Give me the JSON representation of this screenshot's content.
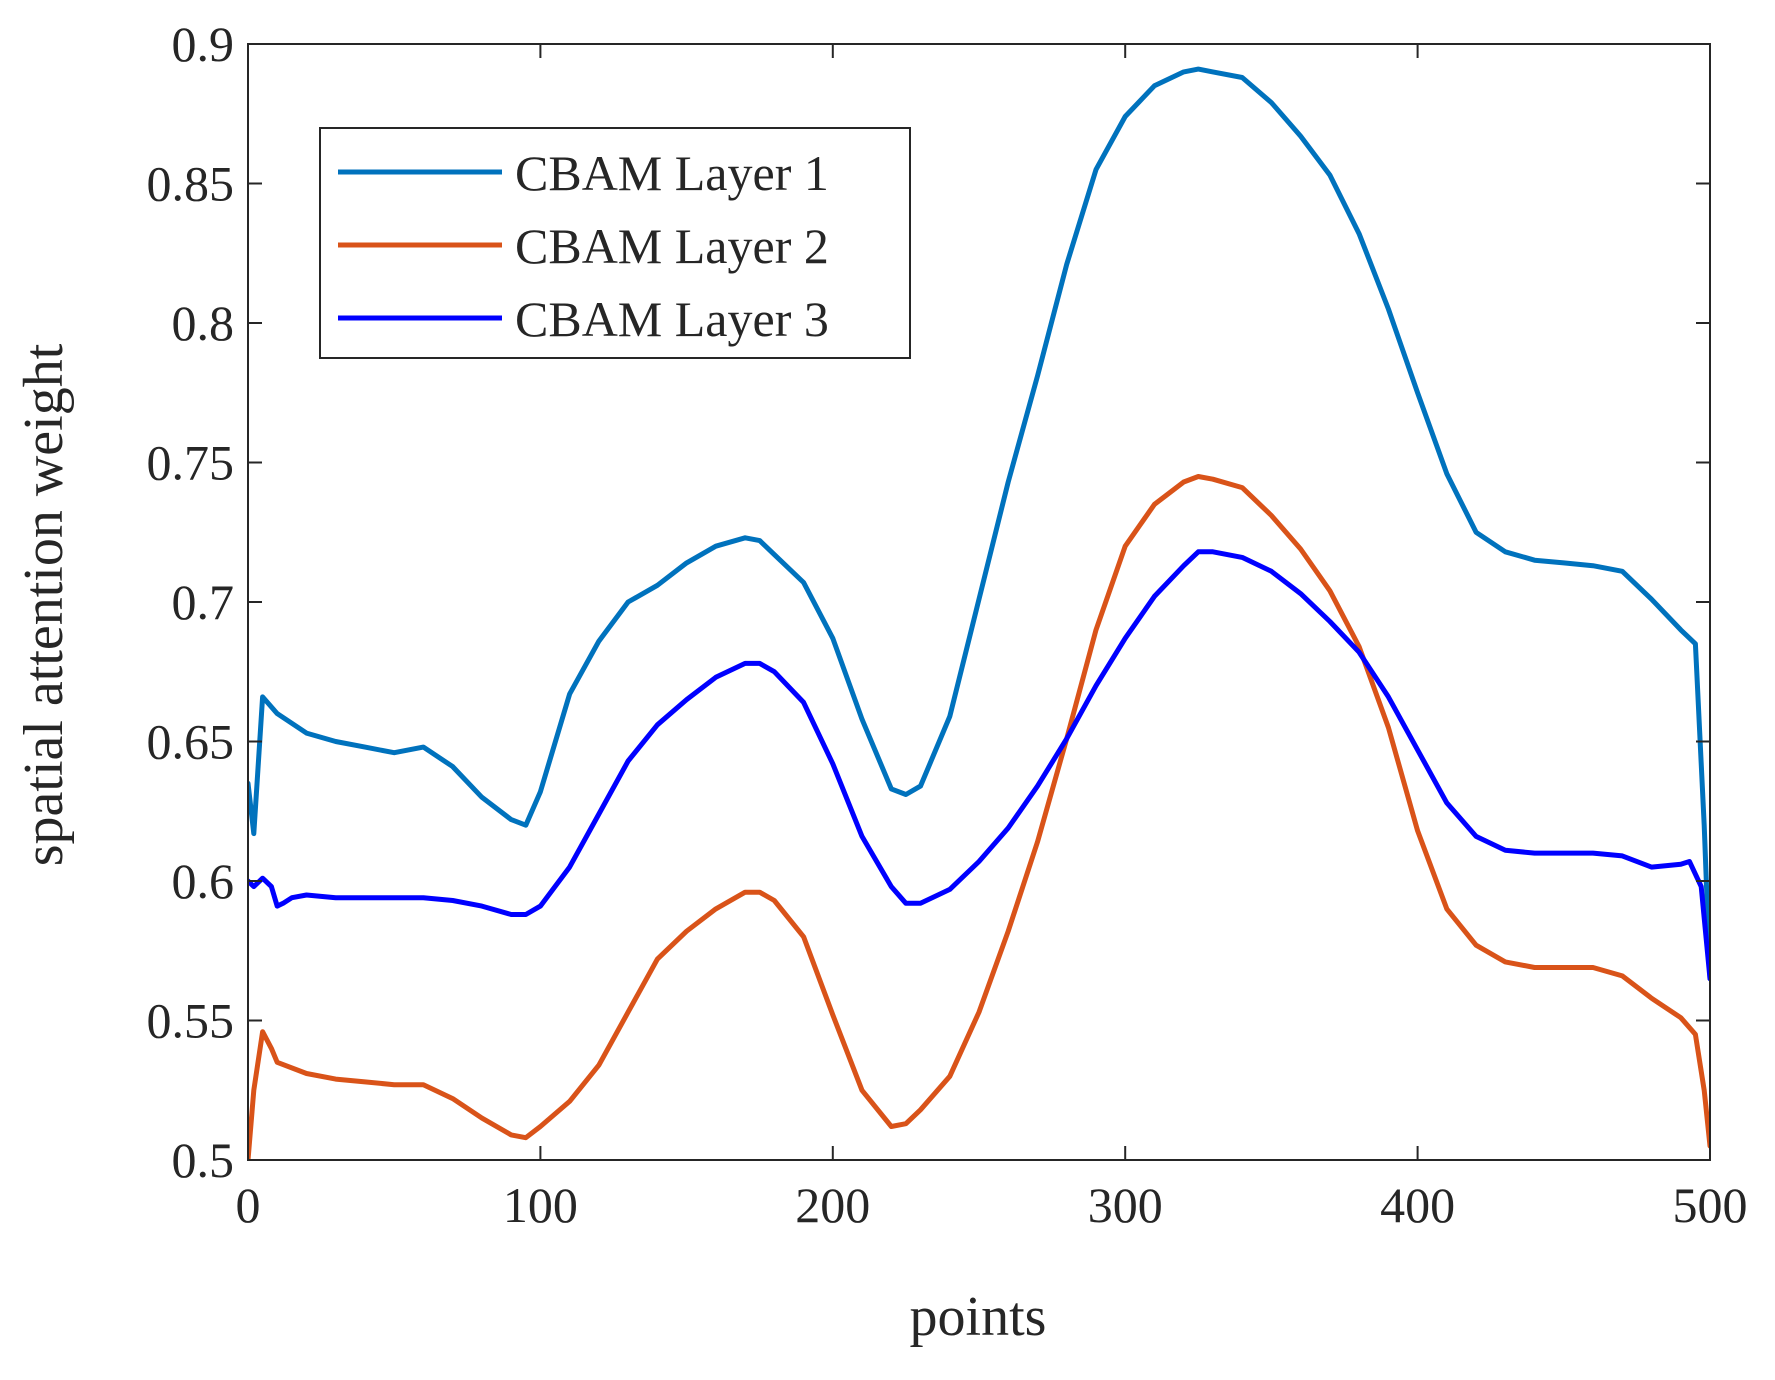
{
  "chart_data": {
    "type": "line",
    "title": "",
    "xlabel": "points",
    "ylabel": "spatial attention weight",
    "xlim": [
      0,
      500
    ],
    "ylim": [
      0.5,
      0.9
    ],
    "xticks": [
      0,
      100,
      200,
      300,
      400,
      500
    ],
    "yticks": [
      0.5,
      0.55,
      0.6,
      0.65,
      0.7,
      0.75,
      0.8,
      0.85,
      0.9
    ],
    "xtick_labels": [
      "0",
      "100",
      "200",
      "300",
      "400",
      "500"
    ],
    "ytick_labels": [
      "0.5",
      "0.55",
      "0.6",
      "0.65",
      "0.7",
      "0.75",
      "0.8",
      "0.85",
      "0.9"
    ],
    "grid": false,
    "legend_position": "top-left",
    "series": [
      {
        "name": "CBAM Layer 1",
        "color": "#0072BD",
        "x": [
          0,
          2,
          5,
          10,
          20,
          30,
          40,
          50,
          60,
          70,
          80,
          90,
          95,
          100,
          110,
          120,
          130,
          140,
          150,
          160,
          170,
          175,
          180,
          190,
          200,
          210,
          220,
          225,
          230,
          240,
          250,
          260,
          270,
          280,
          290,
          300,
          310,
          320,
          325,
          330,
          340,
          350,
          360,
          370,
          380,
          390,
          400,
          410,
          420,
          430,
          440,
          450,
          460,
          470,
          480,
          490,
          495,
          498,
          500
        ],
        "y": [
          0.635,
          0.617,
          0.666,
          0.66,
          0.653,
          0.65,
          0.648,
          0.646,
          0.648,
          0.641,
          0.63,
          0.622,
          0.62,
          0.632,
          0.667,
          0.686,
          0.7,
          0.706,
          0.714,
          0.72,
          0.723,
          0.722,
          0.717,
          0.707,
          0.687,
          0.658,
          0.633,
          0.631,
          0.634,
          0.659,
          0.701,
          0.743,
          0.781,
          0.821,
          0.855,
          0.874,
          0.885,
          0.89,
          0.891,
          0.89,
          0.888,
          0.879,
          0.867,
          0.853,
          0.832,
          0.805,
          0.775,
          0.746,
          0.725,
          0.718,
          0.715,
          0.714,
          0.713,
          0.711,
          0.701,
          0.69,
          0.685,
          0.62,
          0.565
        ]
      },
      {
        "name": "CBAM Layer 2",
        "color": "#D95319",
        "x": [
          0,
          2,
          5,
          8,
          10,
          20,
          30,
          40,
          50,
          60,
          70,
          80,
          90,
          95,
          100,
          110,
          120,
          130,
          140,
          150,
          160,
          170,
          175,
          180,
          190,
          200,
          210,
          220,
          225,
          230,
          240,
          250,
          260,
          270,
          280,
          290,
          300,
          310,
          320,
          325,
          330,
          340,
          350,
          360,
          370,
          380,
          390,
          400,
          410,
          420,
          430,
          440,
          450,
          460,
          470,
          480,
          490,
          495,
          498,
          500
        ],
        "y": [
          0.5,
          0.525,
          0.546,
          0.54,
          0.535,
          0.531,
          0.529,
          0.528,
          0.527,
          0.527,
          0.522,
          0.515,
          0.509,
          0.508,
          0.512,
          0.521,
          0.534,
          0.553,
          0.572,
          0.582,
          0.59,
          0.596,
          0.596,
          0.593,
          0.58,
          0.552,
          0.525,
          0.512,
          0.513,
          0.518,
          0.53,
          0.553,
          0.582,
          0.614,
          0.651,
          0.69,
          0.72,
          0.735,
          0.743,
          0.745,
          0.744,
          0.741,
          0.731,
          0.719,
          0.704,
          0.684,
          0.655,
          0.618,
          0.59,
          0.577,
          0.571,
          0.569,
          0.569,
          0.569,
          0.566,
          0.558,
          0.551,
          0.545,
          0.525,
          0.505
        ]
      },
      {
        "name": "CBAM Layer 3",
        "color": "#0000FF",
        "x": [
          0,
          2,
          5,
          8,
          10,
          12,
          15,
          20,
          30,
          40,
          50,
          60,
          70,
          80,
          90,
          95,
          100,
          110,
          120,
          130,
          140,
          150,
          160,
          170,
          175,
          180,
          190,
          200,
          210,
          220,
          225,
          230,
          240,
          250,
          260,
          270,
          280,
          290,
          300,
          310,
          320,
          325,
          330,
          340,
          350,
          360,
          370,
          380,
          390,
          400,
          410,
          420,
          430,
          440,
          450,
          460,
          470,
          480,
          490,
          493,
          497,
          500
        ],
        "y": [
          0.6,
          0.598,
          0.601,
          0.598,
          0.591,
          0.592,
          0.594,
          0.595,
          0.594,
          0.594,
          0.594,
          0.594,
          0.593,
          0.591,
          0.588,
          0.588,
          0.591,
          0.605,
          0.624,
          0.643,
          0.656,
          0.665,
          0.673,
          0.678,
          0.678,
          0.675,
          0.664,
          0.642,
          0.616,
          0.598,
          0.592,
          0.592,
          0.597,
          0.607,
          0.619,
          0.634,
          0.651,
          0.67,
          0.687,
          0.702,
          0.713,
          0.718,
          0.718,
          0.716,
          0.711,
          0.703,
          0.693,
          0.682,
          0.666,
          0.647,
          0.628,
          0.616,
          0.611,
          0.61,
          0.61,
          0.61,
          0.609,
          0.605,
          0.606,
          0.607,
          0.598,
          0.565
        ]
      }
    ]
  }
}
